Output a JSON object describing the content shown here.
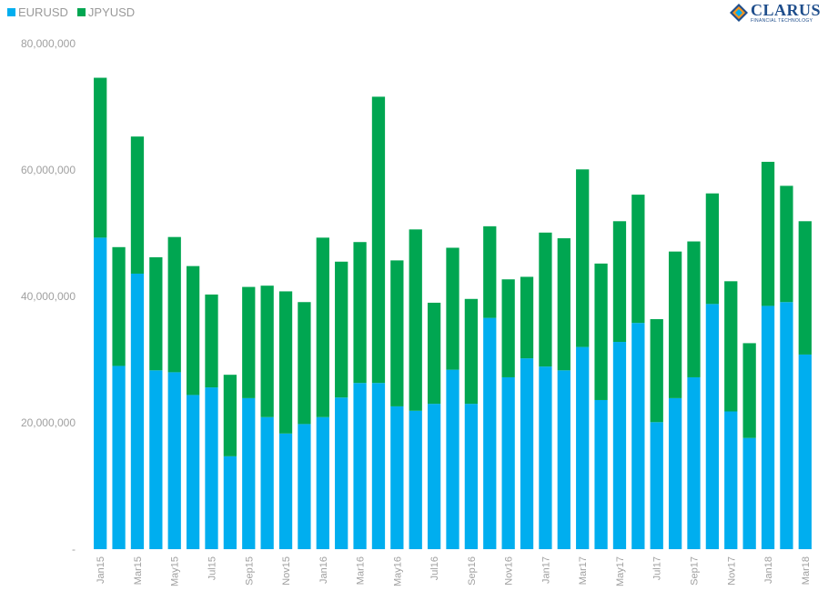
{
  "chart_data": {
    "type": "bar",
    "stacked": true,
    "title": "",
    "xlabel": "",
    "ylabel": "",
    "ylim": [
      0,
      80000000
    ],
    "yticks": [
      {
        "value": 0,
        "label": "-"
      },
      {
        "value": 20000000,
        "label": "20,000,000"
      },
      {
        "value": 40000000,
        "label": "40,000,000"
      },
      {
        "value": 60000000,
        "label": "60,000,000"
      },
      {
        "value": 80000000,
        "label": "80,000,000"
      }
    ],
    "grid": false,
    "legend_position": "top-left",
    "categories": [
      "Jan15",
      "Feb15",
      "Mar15",
      "Apr15",
      "May15",
      "Jun15",
      "Jul15",
      "Aug15",
      "Sep15",
      "Oct15",
      "Nov15",
      "Dec15",
      "Jan16",
      "Feb16",
      "Mar16",
      "Apr16",
      "May16",
      "Jun16",
      "Jul16",
      "Aug16",
      "Sep16",
      "Oct16",
      "Nov16",
      "Dec16",
      "Jan17",
      "Feb17",
      "Mar17",
      "Apr17",
      "May17",
      "Jun17",
      "Jul17",
      "Aug17",
      "Sep17",
      "Oct17",
      "Nov17",
      "Dec17",
      "Jan18",
      "Feb18",
      "Mar18"
    ],
    "x_tick_labels": [
      "Jan15",
      "",
      "Mar15",
      "",
      "May15",
      "",
      "Jul15",
      "",
      "Sep15",
      "",
      "Nov15",
      "",
      "Jan16",
      "",
      "Mar16",
      "",
      "May16",
      "",
      "Jul16",
      "",
      "Sep16",
      "",
      "Nov16",
      "",
      "Jan17",
      "",
      "Mar17",
      "",
      "May17",
      "",
      "Jul17",
      "",
      "Sep17",
      "",
      "Nov17",
      "",
      "Jan18",
      "",
      "Mar18"
    ],
    "series": [
      {
        "name": "EURUSD",
        "color": "#00aeef",
        "values": [
          49300000,
          29000000,
          43600000,
          28300000,
          28000000,
          24400000,
          25600000,
          14700000,
          23900000,
          20900000,
          18300000,
          19800000,
          20900000,
          24000000,
          26300000,
          26300000,
          22600000,
          21900000,
          23000000,
          28400000,
          23000000,
          36600000,
          27200000,
          30200000,
          28900000,
          28300000,
          32000000,
          23600000,
          32800000,
          35800000,
          20100000,
          23900000,
          27200000,
          38800000,
          21800000,
          17600000,
          38500000,
          39100000,
          30800000
        ]
      },
      {
        "name": "JPYUSD",
        "color": "#00a651",
        "values": [
          25300000,
          18800000,
          21700000,
          17900000,
          21400000,
          20400000,
          14700000,
          12900000,
          17600000,
          20800000,
          22500000,
          19300000,
          28400000,
          21500000,
          22300000,
          45300000,
          23100000,
          28700000,
          16000000,
          19300000,
          16600000,
          14500000,
          15500000,
          12900000,
          21200000,
          20900000,
          28100000,
          21600000,
          19100000,
          20300000,
          16300000,
          23200000,
          21500000,
          17500000,
          20600000,
          15000000,
          22800000,
          18400000,
          21100000
        ]
      }
    ]
  },
  "branding": {
    "logo_name": "CLARUS",
    "logo_tagline": "FINANCIAL TECHNOLOGY",
    "logo_colors": [
      "#1f4e8c",
      "#f7941d",
      "#00aeef"
    ]
  }
}
